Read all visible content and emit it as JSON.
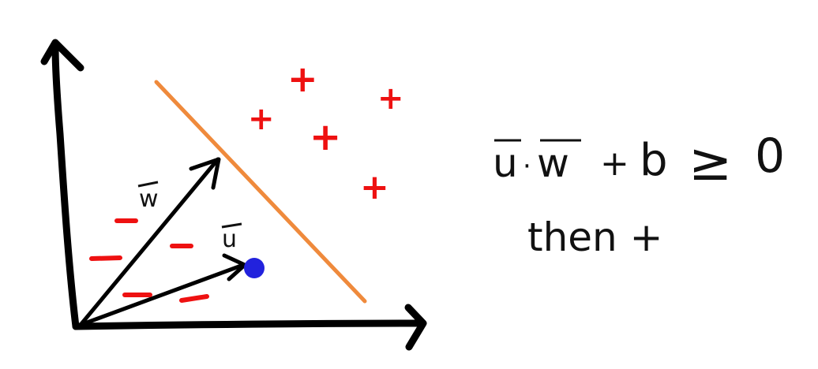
{
  "diagram": {
    "vector_w_label": "w",
    "vector_u_label": "u",
    "plus_sign": "+",
    "minus_sign": "−",
    "equation": {
      "term_u": "u",
      "dot": "·",
      "term_w": "w",
      "plus": "+",
      "term_b": "b",
      "relation": "≥",
      "zero": "0"
    },
    "conclusion": "then +"
  },
  "colors": {
    "axes": "#000000",
    "vectors": "#000000",
    "boundary": "#ef8a3c",
    "positive_samples": "#ee1111",
    "negative_samples": "#ee1111",
    "unknown_point": "#2222dd",
    "ink": "#111111"
  }
}
